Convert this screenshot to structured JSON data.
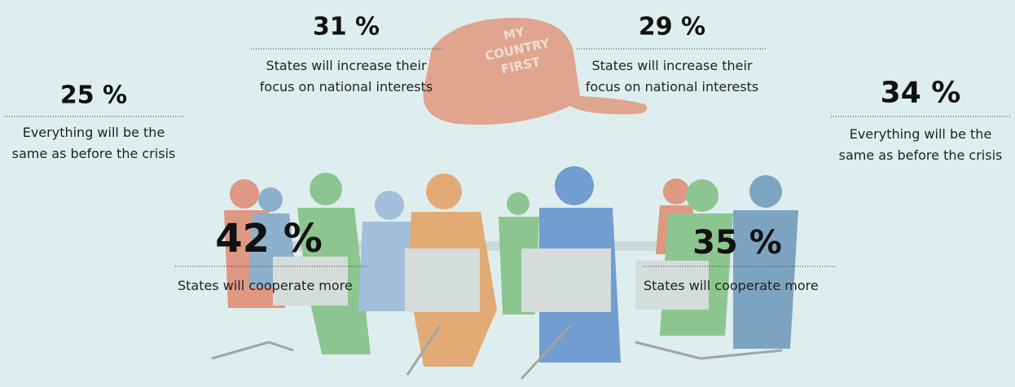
{
  "cap": {
    "lines": [
      "MY",
      "COUNTRY",
      "FIRST"
    ]
  },
  "stats": [
    {
      "value": "25 %",
      "label": [
        "Everything will be the",
        "same as before the crisis"
      ]
    },
    {
      "value": "31 %",
      "label": [
        "States will increase their",
        "focus on national interests"
      ]
    },
    {
      "value": "29 %",
      "label": [
        "States will increase their",
        "focus on national interests"
      ]
    },
    {
      "value": "34 %",
      "label": [
        "Everything will be the",
        "same as before the crisis"
      ]
    },
    {
      "value": "42 %",
      "label": [
        "States will cooperate more"
      ]
    },
    {
      "value": "35 %",
      "label": [
        "States will cooperate more"
      ]
    }
  ]
}
